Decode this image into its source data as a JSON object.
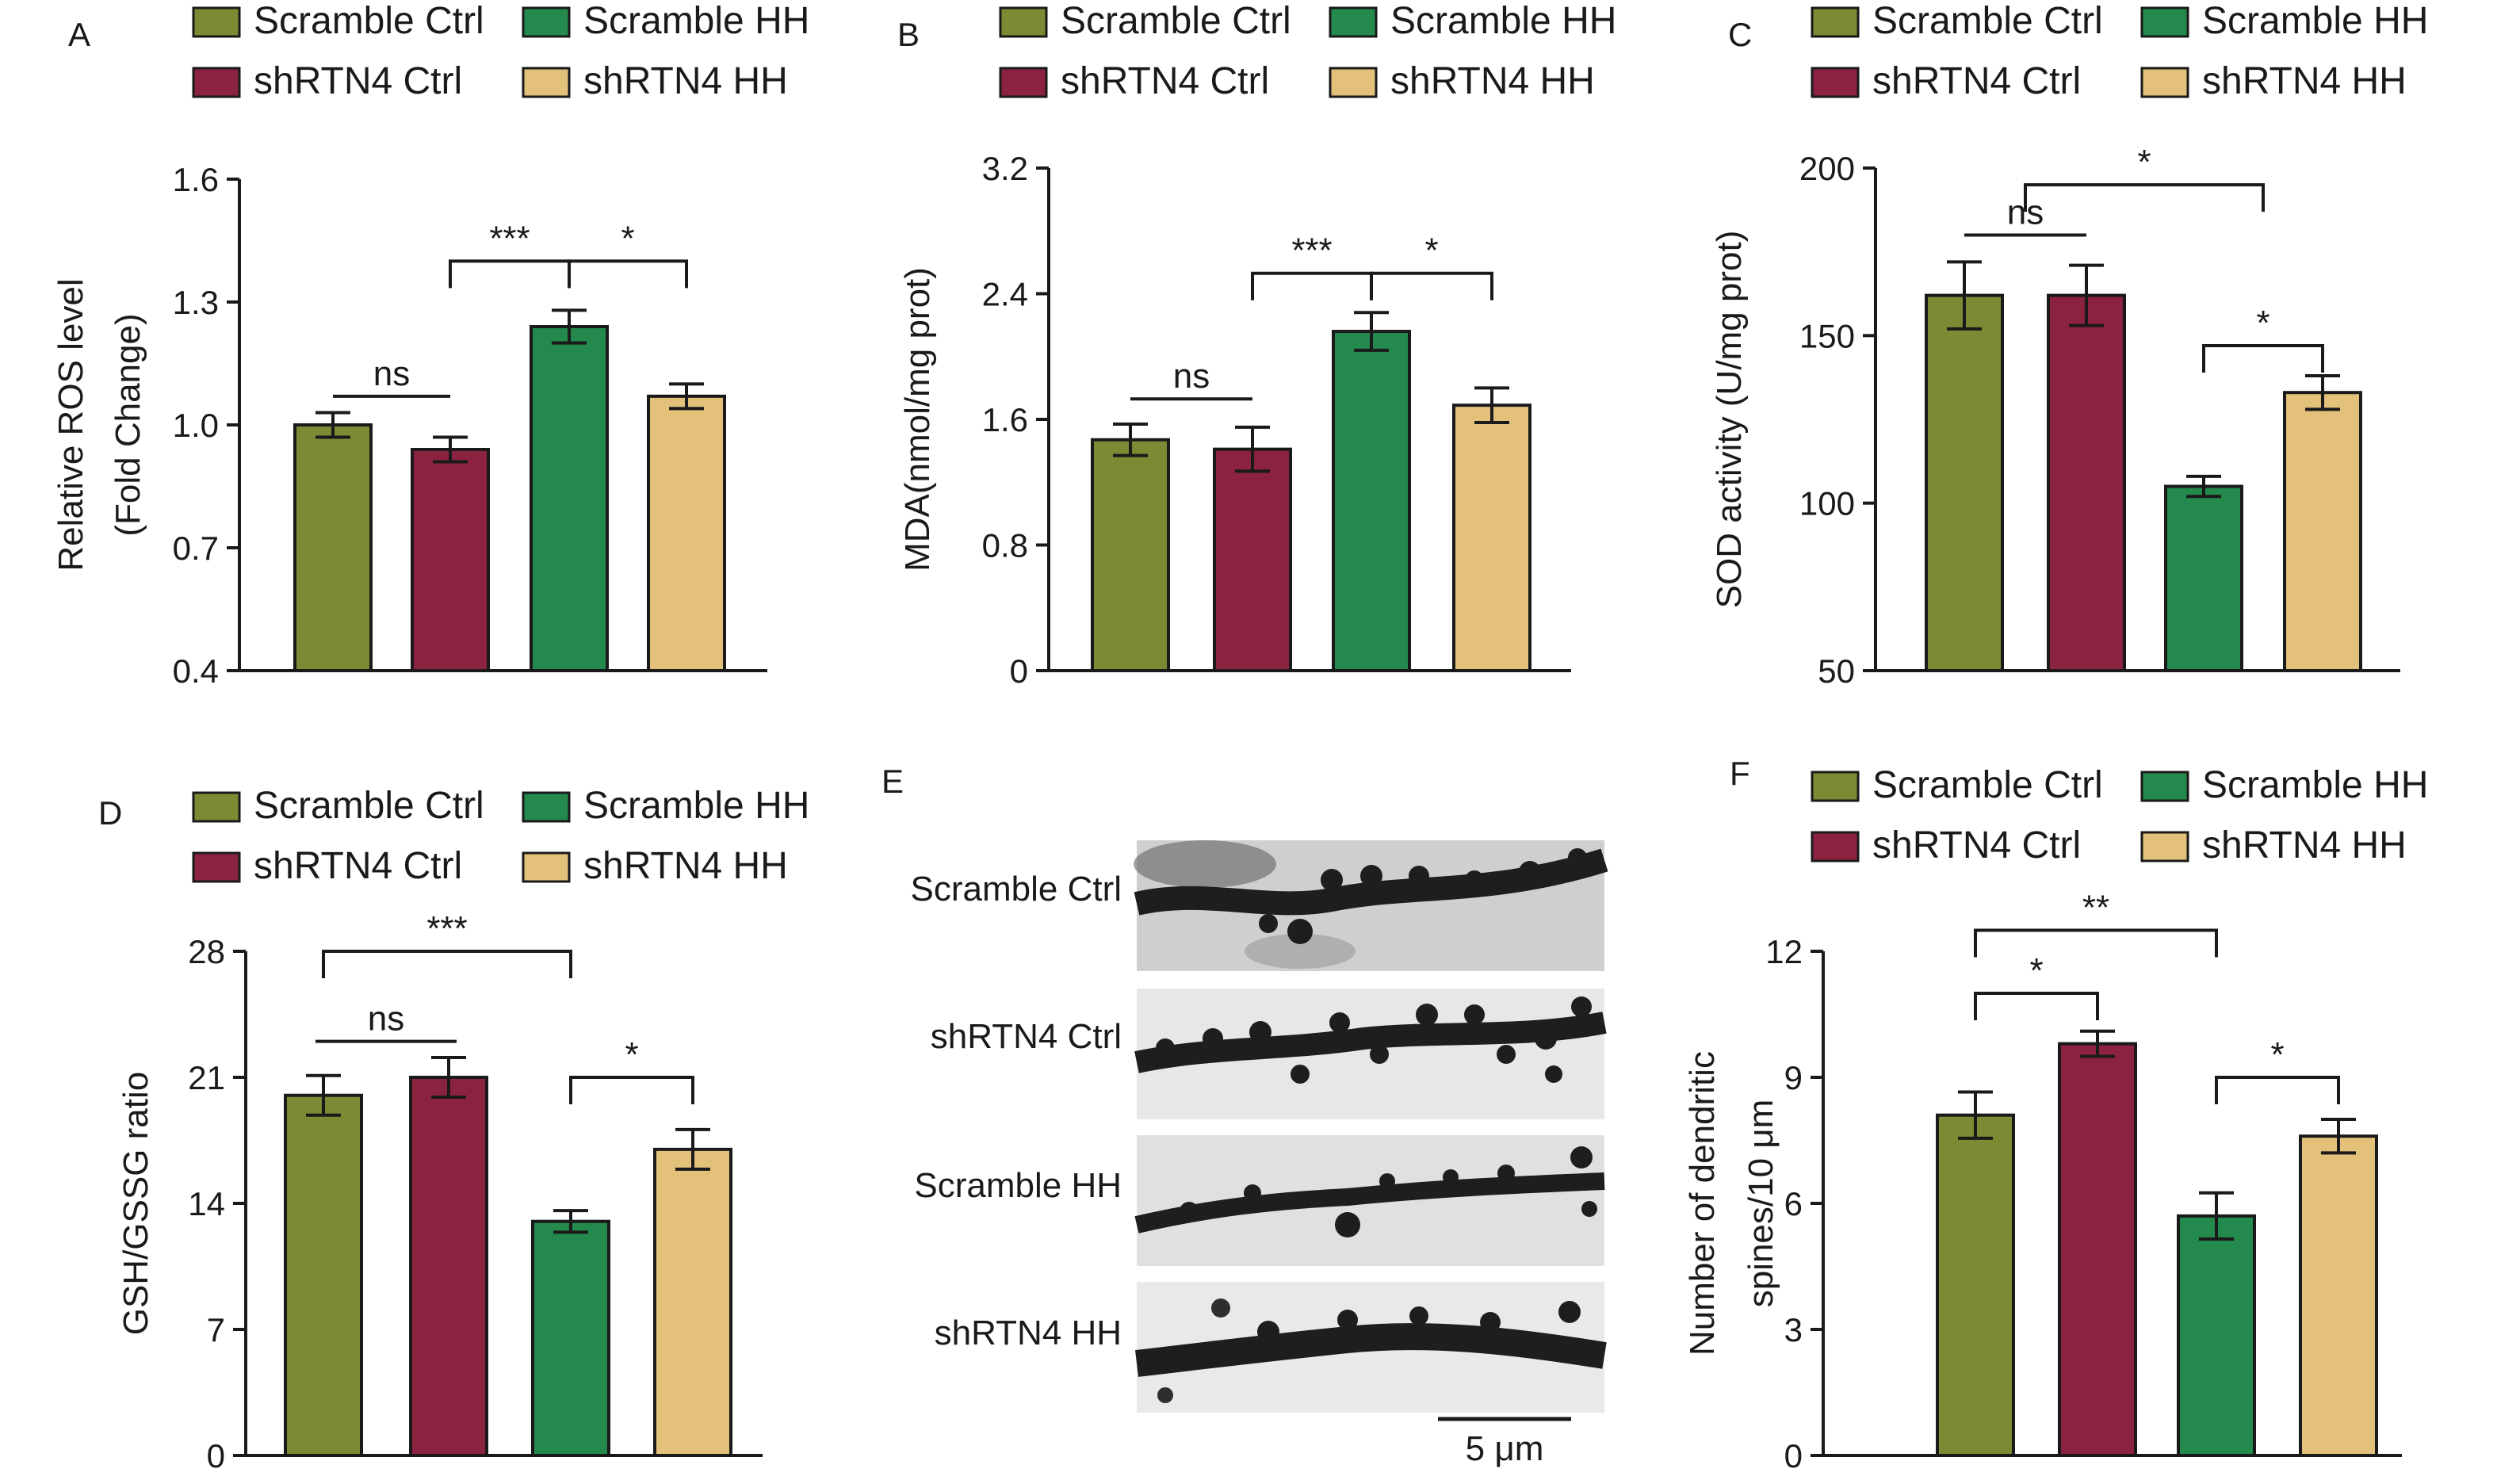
{
  "colors": {
    "Scramble Ctrl": "#7d8a34",
    "Scramble HH": "#23894c",
    "shRTN4 Ctrl": "#8b2240",
    "shRTN4 HH": "#e3c17b"
  },
  "legend": {
    "entries": [
      "Scramble Ctrl",
      "Scramble HH",
      "shRTN4 Ctrl",
      "shRTN4 HH"
    ]
  },
  "panel_e": {
    "letter": "E",
    "rows": [
      "Scramble Ctrl",
      "shRTN4 Ctrl",
      "Scramble HH",
      "shRTN4 HH"
    ],
    "scale_bar": "5 μm"
  },
  "chart_data": [
    {
      "panel": "A",
      "type": "bar",
      "categories": [
        "Scramble Ctrl",
        "shRTN4 Ctrl",
        "Scramble HH",
        "shRTN4 HH"
      ],
      "values": [
        1.0,
        0.94,
        1.24,
        1.07
      ],
      "errors": [
        0.03,
        0.03,
        0.04,
        0.03
      ],
      "ylabel": "Relative ROS level\n(Fold Change)",
      "ylim": [
        0.4,
        1.6
      ],
      "yticks": [
        "0.4",
        "0.7",
        "1.0",
        "1.3",
        "1.6"
      ],
      "legend": "top",
      "grid": false,
      "significance": [
        {
          "from": 0,
          "to": 1,
          "label": "ns",
          "level": 1.07
        },
        {
          "from": 1,
          "to": 2,
          "label": "***",
          "level": 1.4
        },
        {
          "from": 2,
          "to": 3,
          "label": "*",
          "level": 1.4
        }
      ]
    },
    {
      "panel": "B",
      "type": "bar",
      "categories": [
        "Scramble Ctrl",
        "shRTN4 Ctrl",
        "Scramble HH",
        "shRTN4 HH"
      ],
      "values": [
        1.47,
        1.41,
        2.16,
        1.69
      ],
      "errors": [
        0.1,
        0.14,
        0.12,
        0.11
      ],
      "ylabel": "MDA(nmol/mg prot)",
      "ylim": [
        0,
        3.2
      ],
      "yticks": [
        "0",
        "0.8",
        "1.6",
        "2.4",
        "3.2"
      ],
      "legend": "top",
      "grid": false,
      "significance": [
        {
          "from": 0,
          "to": 1,
          "label": "ns",
          "level": 1.73
        },
        {
          "from": 1,
          "to": 2,
          "label": "***",
          "level": 2.53
        },
        {
          "from": 2,
          "to": 3,
          "label": "*",
          "level": 2.53
        }
      ]
    },
    {
      "panel": "C",
      "type": "bar",
      "categories": [
        "Scramble Ctrl",
        "shRTN4 Ctrl",
        "Scramble HH",
        "shRTN4 HH"
      ],
      "values": [
        162,
        162,
        105,
        133
      ],
      "errors": [
        10,
        9,
        3,
        5
      ],
      "ylabel": "SOD activity (U/mg prot)",
      "ylim": [
        50,
        200
      ],
      "yticks": [
        "50",
        "100",
        "150",
        "200"
      ],
      "legend": "top",
      "grid": false,
      "significance": [
        {
          "from": 0,
          "to": 1,
          "label": "ns",
          "level": 180
        },
        {
          "from": 0.5,
          "to": 2.5,
          "label": "*",
          "level": 195
        },
        {
          "from": 2,
          "to": 3,
          "label": "*",
          "level": 147
        }
      ]
    },
    {
      "panel": "D",
      "type": "bar",
      "categories": [
        "Scramble Ctrl",
        "shRTN4 Ctrl",
        "Scramble HH",
        "shRTN4 HH"
      ],
      "values": [
        20,
        21,
        13,
        17
      ],
      "errors": [
        1.1,
        1.1,
        0.6,
        1.1
      ],
      "ylabel": "GSH/GSSG ratio",
      "ylim": [
        0,
        28
      ],
      "yticks": [
        "0",
        "7",
        "14",
        "21",
        "28"
      ],
      "legend": "top",
      "grid": false,
      "significance": [
        {
          "from": 0,
          "to": 1,
          "label": "ns",
          "level": 23
        },
        {
          "from": 0,
          "to": 2,
          "label": "***",
          "level": 28
        },
        {
          "from": 2,
          "to": 3,
          "label": "*",
          "level": 21
        }
      ]
    },
    {
      "panel": "F",
      "type": "bar",
      "categories": [
        "Scramble Ctrl",
        "shRTN4 Ctrl",
        "Scramble HH",
        "shRTN4 HH"
      ],
      "values": [
        8.1,
        9.8,
        5.7,
        7.6
      ],
      "errors": [
        0.55,
        0.3,
        0.55,
        0.4
      ],
      "ylabel": "Number of dendritic\nspines/10 μm",
      "ylim": [
        0,
        12
      ],
      "yticks": [
        "0",
        "3",
        "6",
        "9",
        "12"
      ],
      "legend": "top",
      "grid": false,
      "significance": [
        {
          "from": 0,
          "to": 1,
          "label": "*",
          "level": 11
        },
        {
          "from": 0,
          "to": 2,
          "label": "**",
          "level": 12.5
        },
        {
          "from": 2,
          "to": 3,
          "label": "*",
          "level": 9
        }
      ]
    }
  ]
}
